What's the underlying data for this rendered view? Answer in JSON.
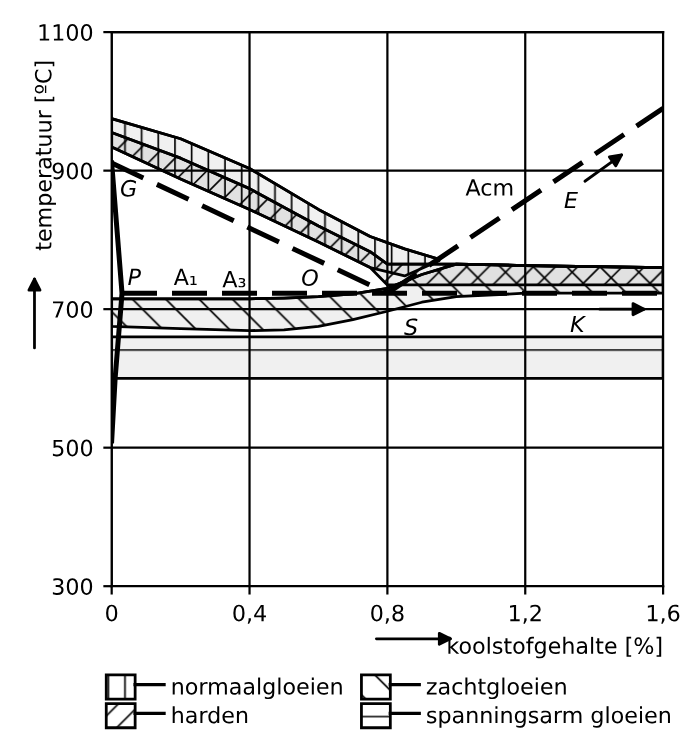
{
  "chart_data": {
    "type": "line",
    "xlabel": "koolstofgehalte [%]",
    "ylabel": "temperatuur [ºC]",
    "xlim": [
      0,
      1.6
    ],
    "ylim": [
      300,
      1100
    ],
    "xticks": [
      0,
      {
        "value": 0.4,
        "label": "0,4"
      },
      {
        "value": 0.8,
        "label": "0,8"
      },
      {
        "value": 1.2,
        "label": "1,2"
      },
      {
        "value": 1.6,
        "label": "1,6"
      }
    ],
    "yticks": [
      300,
      500,
      700,
      900,
      1100
    ],
    "grid": true,
    "legend": "bottom",
    "series": [
      {
        "name": "normaalgloeien",
        "type": "line",
        "color": "#000000",
        "x": [
          0,
          0.2,
          0.4,
          0.6,
          0.75,
          0.85,
          0.95
        ],
        "values": [
          975,
          946,
          903,
          844,
          805,
          787,
          772
        ],
        "lower": [
          934,
          888,
          844,
          797,
          760,
          748,
          770
        ],
        "upper": [
          975,
          946,
          903,
          844,
          805,
          787,
          772
        ]
      },
      {
        "name": "harden",
        "type": "line",
        "color": "#000000",
        "x": [
          0,
          0.2,
          0.4,
          0.6,
          0.75,
          0.8,
          1.0,
          1.2,
          1.6
        ],
        "values": [
          955,
          918,
          874,
          820,
          783,
          765,
          765,
          763,
          760
        ],
        "lower": [
          934,
          888,
          844,
          797,
          760,
          735,
          735,
          735,
          735
        ],
        "upper": [
          955,
          918,
          874,
          820,
          783,
          765,
          765,
          763,
          760
        ]
      },
      {
        "name": "zachtgloeien",
        "type": "line",
        "color": "#000000",
        "x": [
          0,
          0.2,
          0.4,
          0.5,
          0.6,
          0.7,
          0.8,
          0.9,
          1.0,
          1.2,
          1.6
        ],
        "values": [
          715,
          715,
          715,
          716,
          718,
          722,
          730,
          750,
          765,
          763,
          760
        ],
        "lower": [
          675,
          672,
          669,
          670,
          675,
          685,
          697,
          710,
          718,
          723,
          723
        ],
        "upper": [
          715,
          715,
          715,
          716,
          718,
          722,
          730,
          750,
          765,
          763,
          760
        ]
      },
      {
        "type": "line",
        "color": "#000000",
        "line_style": "dashed",
        "x": [
          0,
          0.8
        ],
        "values": [
          911,
          723
        ]
      },
      {
        "type": "line",
        "color": "#000000",
        "line_style": "dashed",
        "x": [
          0.8,
          1.6
        ],
        "values": [
          723,
          990
        ]
      },
      {
        "type": "line",
        "color": "#000000",
        "line_style": "dashed",
        "x": [
          0.03,
          1.6
        ],
        "values": [
          723,
          723
        ]
      },
      {
        "type": "line",
        "color": "#000000",
        "line_style": "solid",
        "x": [
          0,
          0.03,
          0.01,
          0
        ],
        "values": [
          911,
          723,
          600,
          510
        ]
      }
    ],
    "bands": [
      {
        "axis": "y",
        "from": 600,
        "to": 660,
        "label": "spanningsarm gloeien",
        "color": "#000000"
      }
    ],
    "annotations": [
      {
        "text": "G",
        "x": 0,
        "y": 911
      },
      {
        "text": "P",
        "x": 0.03,
        "y": 723
      },
      {
        "text": "A₁",
        "x": 0.18,
        "y": 723
      },
      {
        "text": "A₃",
        "x": 0.45,
        "y": 804
      },
      {
        "text": "O",
        "x": 0.55,
        "y": 782
      },
      {
        "text": "S",
        "x": 0.8,
        "y": 723
      },
      {
        "text": "Acm",
        "x": 1.2,
        "y": 856
      },
      {
        "text": "E",
        "x": 1.28,
        "y": 878
      },
      {
        "text": "K",
        "x": 1.33,
        "y": 723
      }
    ]
  }
}
